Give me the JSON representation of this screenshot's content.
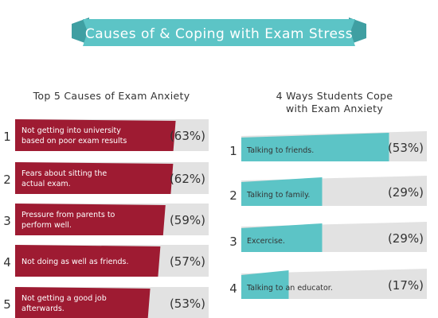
{
  "banner": {
    "title": "Causes of & Coping with Exam Stress"
  },
  "colors": {
    "banner": "#5cc4c6",
    "banner_shadow": "#3f9fa2",
    "causes_bar": "#9e1b32",
    "coping_bar": "#5cc4c6",
    "track": "#e2e2e2",
    "text": "#333333"
  },
  "chart_data": [
    {
      "type": "bar",
      "orientation": "horizontal",
      "title": "Top 5 Causes of Exam Anxiety",
      "ranks": [
        "1",
        "2",
        "3",
        "4",
        "5"
      ],
      "categories": [
        "Not getting into university based on poor exam results",
        "Fears about sitting the actual exam.",
        "Pressure from parents to perform well.",
        "Not doing as well as friends.",
        "Not getting a good job afterwards."
      ],
      "lines": [
        [
          "Not getting into university",
          "based on poor exam results"
        ],
        [
          "Fears about sitting the",
          "actual exam."
        ],
        [
          "Pressure from parents to",
          "perform well."
        ],
        [
          "Not doing as well as friends."
        ],
        [
          "Not getting a good job",
          "afterwards."
        ]
      ],
      "values": [
        63,
        62,
        59,
        57,
        53
      ],
      "value_labels": [
        "(63%)",
        "(62%)",
        "(59%)",
        "(57%)",
        "(53%)"
      ]
    },
    {
      "type": "bar",
      "orientation": "horizontal",
      "title": [
        "4 Ways Students Cope",
        "with Exam Anxiety"
      ],
      "ranks": [
        "1",
        "2",
        "3",
        "4"
      ],
      "categories": [
        "Talking to friends.",
        "Talking to family.",
        "Excercise.",
        "Talking to an educator."
      ],
      "values": [
        53,
        29,
        29,
        17
      ],
      "value_labels": [
        "(53%)",
        "(29%)",
        "(29%)",
        "(17%)"
      ]
    }
  ]
}
